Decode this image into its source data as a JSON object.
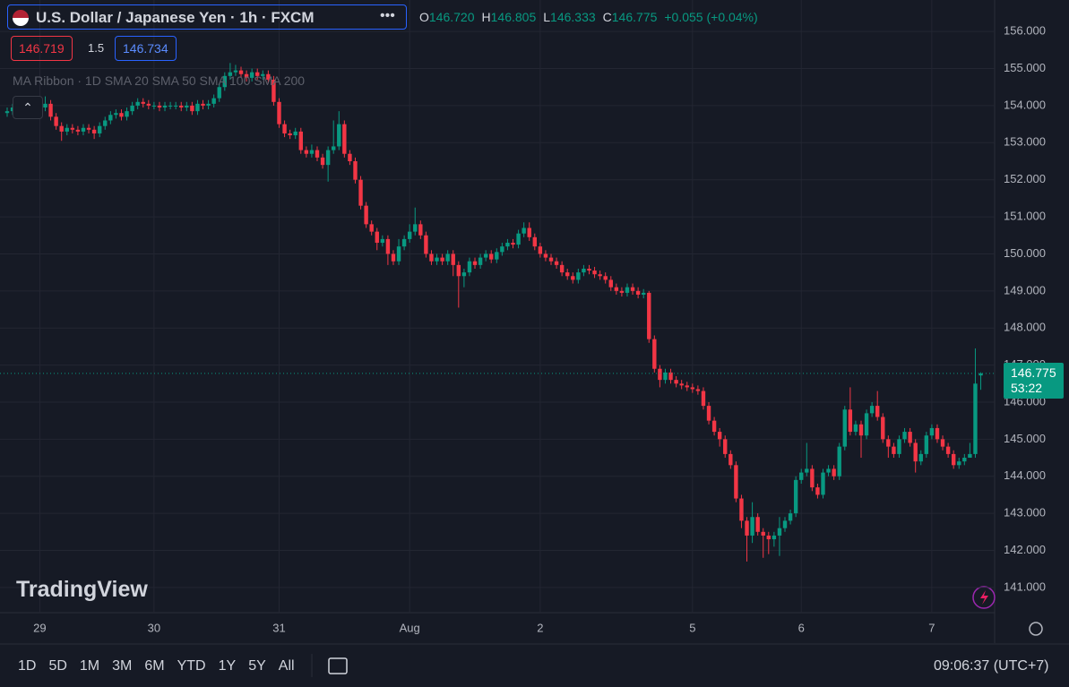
{
  "header": {
    "title": "U.S. Dollar / Japanese Yen · 1h · FXCM",
    "ohlc": [
      {
        "key": "O",
        "value": "146.720"
      },
      {
        "key": "H",
        "value": "146.805"
      },
      {
        "key": "L",
        "value": "146.333"
      },
      {
        "key": "C",
        "value": "146.775"
      }
    ],
    "change": "+0.055 (+0.04%)",
    "bid": "146.719",
    "spread": "1.5",
    "ask": "146.734",
    "indicator": "MA Ribbon · 1D SMA 20 SMA 50 SMA 100 SMA 200"
  },
  "logo": "TradingView",
  "price_label": {
    "price": "146.775",
    "countdown": "53:22"
  },
  "toolbar": {
    "timeframes": [
      "1D",
      "5D",
      "1M",
      "3M",
      "6M",
      "YTD",
      "1Y",
      "5Y",
      "All"
    ],
    "clock": "09:06:37 (UTC+7)"
  },
  "chart_data": {
    "type": "candlestick",
    "up_color": "#089981",
    "down_color": "#f23645",
    "ylim": [
      140.32,
      156.85
    ],
    "yticks": [
      {
        "value": 141,
        "label": "141.000"
      },
      {
        "value": 142,
        "label": "142.000"
      },
      {
        "value": 143,
        "label": "143.000"
      },
      {
        "value": 144,
        "label": "144.000"
      },
      {
        "value": 145,
        "label": "145.000"
      },
      {
        "value": 146,
        "label": "146.000"
      },
      {
        "value": 147,
        "label": "147.000"
      },
      {
        "value": 148,
        "label": "148.000"
      },
      {
        "value": 149,
        "label": "149.000"
      },
      {
        "value": 150,
        "label": "150.000"
      },
      {
        "value": 151,
        "label": "151.000"
      },
      {
        "value": 152,
        "label": "152.000"
      },
      {
        "value": 153,
        "label": "153.000"
      },
      {
        "value": 154,
        "label": "154.000"
      },
      {
        "value": 155,
        "label": "155.000"
      },
      {
        "value": 156,
        "label": "156.000"
      }
    ],
    "grid": true,
    "categories": [
      null,
      null,
      null,
      null,
      null,
      null,
      "29",
      null,
      null,
      null,
      null,
      null,
      null,
      null,
      null,
      null,
      null,
      null,
      null,
      null,
      null,
      null,
      null,
      null,
      null,
      null,
      null,
      "30",
      null,
      null,
      null,
      null,
      null,
      null,
      null,
      null,
      null,
      null,
      null,
      null,
      null,
      null,
      null,
      null,
      null,
      null,
      null,
      null,
      null,
      null,
      "31",
      null,
      null,
      null,
      null,
      null,
      null,
      null,
      null,
      null,
      null,
      null,
      null,
      null,
      null,
      null,
      null,
      null,
      null,
      null,
      null,
      null,
      null,
      null,
      "Aug",
      null,
      null,
      null,
      null,
      null,
      null,
      null,
      null,
      null,
      null,
      null,
      null,
      null,
      null,
      null,
      null,
      null,
      null,
      null,
      null,
      null,
      null,
      null,
      "2",
      null,
      null,
      null,
      null,
      null,
      null,
      null,
      null,
      null,
      null,
      null,
      null,
      null,
      null,
      null,
      null,
      null,
      null,
      null,
      null,
      null,
      null,
      null,
      null,
      null,
      null,
      null,
      "5",
      null,
      null,
      null,
      null,
      null,
      null,
      null,
      null,
      null,
      null,
      null,
      null,
      null,
      null,
      null,
      null,
      null,
      null,
      null,
      "6",
      null,
      null,
      null,
      null,
      null,
      null,
      null,
      null,
      null,
      null,
      null,
      null,
      null,
      null,
      null,
      null,
      null,
      null,
      null,
      null,
      null,
      null,
      null,
      "7",
      null,
      null,
      null,
      null,
      null,
      null,
      null,
      null,
      null
    ],
    "open": [
      153.8,
      153.85,
      153.95,
      153.8,
      153.9,
      154,
      153.85,
      153.95,
      154.05,
      153.7,
      153.45,
      153.3,
      153.4,
      153.35,
      153.3,
      153.4,
      153.35,
      153.25,
      153.45,
      153.6,
      153.75,
      153.8,
      153.7,
      153.85,
      154,
      154.1,
      154.05,
      154,
      154,
      153.95,
      154,
      154,
      154,
      153.95,
      154,
      153.85,
      154.05,
      154,
      154.05,
      154.2,
      154.5,
      154.8,
      154.9,
      154.95,
      154.85,
      154.75,
      154.9,
      154.8,
      154.85,
      154.7,
      154.1,
      153.5,
      153.25,
      153.2,
      153.3,
      152.8,
      152.7,
      152.8,
      152.6,
      152.4,
      152.8,
      152.9,
      153.5,
      152.7,
      152.5,
      152,
      151.3,
      150.8,
      150.6,
      150.3,
      150.4,
      150,
      149.8,
      150.2,
      150.4,
      150.6,
      150.8,
      150.5,
      150,
      149.8,
      149.9,
      149.8,
      150,
      149.7,
      149.4,
      149.5,
      149.8,
      149.7,
      149.9,
      150,
      149.85,
      150.05,
      150.2,
      150.3,
      150.25,
      150.55,
      150.7,
      150.45,
      150.2,
      150,
      149.9,
      149.8,
      149.7,
      149.5,
      149.4,
      149.3,
      149.5,
      149.6,
      149.55,
      149.45,
      149.4,
      149.3,
      149.1,
      149,
      148.95,
      149.1,
      149,
      148.9,
      148.95,
      147.7,
      146.9,
      146.6,
      146.8,
      146.6,
      146.5,
      146.45,
      146.4,
      146.35,
      146.3,
      145.9,
      145.5,
      145.2,
      145,
      144.6,
      144.3,
      143.4,
      142.8,
      142.4,
      142.9,
      142.5,
      142.4,
      142.3,
      142.4,
      142.6,
      142.8,
      143,
      143.9,
      144.1,
      144.2,
      143.7,
      143.5,
      144.1,
      144.2,
      144,
      144.8,
      145.8,
      145.2,
      145.4,
      145.1,
      145.7,
      145.9,
      145.6,
      145,
      144.8,
      144.6,
      145,
      145.2,
      144.9,
      144.4,
      144.6,
      145.1,
      145.3,
      145,
      144.8,
      144.6,
      144.3,
      144.4,
      144.5,
      144.6,
      146.72
    ],
    "high": [
      153.95,
      154.05,
      154.05,
      154,
      154.1,
      154.1,
      154.05,
      154.25,
      154.15,
      153.8,
      153.55,
      153.5,
      153.5,
      153.45,
      153.5,
      153.5,
      153.45,
      153.55,
      153.7,
      153.85,
      153.9,
      153.9,
      153.95,
      154.1,
      154.2,
      154.2,
      154.15,
      154.1,
      154.1,
      154.1,
      154.1,
      154.1,
      154.1,
      154.1,
      154.1,
      154.15,
      154.15,
      154.15,
      154.3,
      154.6,
      154.9,
      155.15,
      155.1,
      155.05,
      154.95,
      155,
      155,
      154.95,
      154.95,
      154.8,
      154.2,
      153.6,
      153.35,
      153.4,
      153.4,
      152.9,
      152.95,
      152.9,
      152.7,
      152.9,
      153.6,
      153.85,
      153.6,
      152.8,
      152.6,
      152.1,
      151.4,
      150.9,
      150.7,
      150.5,
      150.5,
      150.1,
      150.4,
      150.5,
      150.8,
      151.25,
      150.9,
      150.6,
      150.1,
      150,
      150,
      150.1,
      150.1,
      149.8,
      149.6,
      149.9,
      149.9,
      150,
      150.1,
      150.1,
      150.15,
      150.3,
      150.4,
      150.4,
      150.65,
      150.85,
      150.85,
      150.55,
      150.3,
      150.1,
      150,
      149.9,
      149.8,
      149.6,
      149.5,
      149.6,
      149.7,
      149.7,
      149.65,
      149.55,
      149.5,
      149.4,
      149.2,
      149.1,
      149.2,
      149.2,
      149.1,
      149.05,
      149,
      147.8,
      147,
      146.9,
      146.9,
      146.7,
      146.6,
      146.55,
      146.5,
      146.45,
      146.4,
      146,
      145.6,
      145.3,
      145.1,
      144.7,
      144.4,
      143.5,
      142.9,
      143.3,
      143,
      142.6,
      142.5,
      142.5,
      142.9,
      142.9,
      143.1,
      144,
      144.2,
      144.9,
      144.3,
      143.8,
      144.2,
      144.3,
      144.3,
      144.9,
      145.9,
      146.4,
      145.5,
      145.5,
      145.8,
      146,
      146.3,
      145.7,
      145.1,
      144.9,
      145.1,
      145.3,
      145.3,
      145,
      144.7,
      145.2,
      145.4,
      145.4,
      145.1,
      144.9,
      144.7,
      144.5,
      144.6,
      144.9,
      147.45,
      146.805
    ],
    "low": [
      153.7,
      153.75,
      153.7,
      153.7,
      153.8,
      153.75,
      153.75,
      153.85,
      153.6,
      153.35,
      153.05,
      153.2,
      153.25,
      153.2,
      153.2,
      153.25,
      153.1,
      153.15,
      153.35,
      153.5,
      153.65,
      153.6,
      153.6,
      153.75,
      153.9,
      153.95,
      153.9,
      153.9,
      153.85,
      153.85,
      153.9,
      153.9,
      153.85,
      153.85,
      153.75,
      153.75,
      153.9,
      153.9,
      153.95,
      154.1,
      154.4,
      154.7,
      154.8,
      154.75,
      154.65,
      154.65,
      154.7,
      154.7,
      154.6,
      154,
      153.4,
      153.15,
      153.1,
      153.1,
      152.7,
      152.6,
      152.6,
      152.5,
      152.3,
      151.95,
      152.7,
      152.8,
      152.6,
      152.4,
      151.9,
      151.2,
      150.7,
      150.5,
      150.1,
      150.2,
      149.7,
      149.7,
      149.7,
      150.1,
      150.3,
      150.5,
      150.4,
      149.9,
      149.7,
      149.7,
      149.7,
      149.7,
      149.4,
      148.55,
      149.1,
      149.4,
      149.6,
      149.6,
      149.8,
      149.75,
      149.75,
      149.95,
      150.1,
      150.15,
      150.15,
      150.45,
      150.35,
      150.1,
      149.9,
      149.8,
      149.7,
      149.6,
      149.4,
      149.3,
      149.2,
      149.2,
      149.4,
      149.45,
      149.35,
      149.3,
      149.2,
      149,
      148.9,
      148.85,
      148.85,
      148.9,
      148.8,
      148.8,
      147.6,
      146.8,
      146.4,
      146.5,
      146.5,
      146.4,
      146.35,
      146.3,
      146.25,
      146.2,
      145.8,
      145.4,
      145.1,
      144.8,
      144.5,
      144.2,
      143.3,
      142.6,
      141.7,
      142.2,
      142.4,
      141.8,
      141.9,
      142.1,
      141.85,
      142.5,
      142.7,
      142.9,
      143.8,
      144,
      143.6,
      143.4,
      143.4,
      144,
      143.9,
      143.9,
      144.7,
      145.1,
      145.1,
      144.5,
      145,
      145.6,
      145.5,
      144.9,
      144.5,
      144.5,
      144.5,
      144.9,
      144.8,
      144.1,
      144.3,
      144.5,
      145,
      144.9,
      144.7,
      144.5,
      144.2,
      144.2,
      144.3,
      144.5,
      144.5,
      146.333
    ],
    "close": [
      153.85,
      153.95,
      153.8,
      153.9,
      154,
      153.85,
      153.95,
      154.05,
      153.7,
      153.45,
      153.3,
      153.4,
      153.35,
      153.3,
      153.4,
      153.35,
      153.25,
      153.45,
      153.6,
      153.75,
      153.8,
      153.7,
      153.85,
      154,
      154.1,
      154.05,
      154,
      154,
      153.95,
      154,
      154,
      154,
      153.95,
      154,
      153.85,
      154.05,
      154,
      154.05,
      154.2,
      154.5,
      154.8,
      154.9,
      154.95,
      154.85,
      154.75,
      154.9,
      154.8,
      154.85,
      154.7,
      154.1,
      153.5,
      153.25,
      153.2,
      153.3,
      152.8,
      152.7,
      152.8,
      152.6,
      152.4,
      152.8,
      152.9,
      153.5,
      152.7,
      152.5,
      152,
      151.3,
      150.8,
      150.6,
      150.3,
      150.4,
      150,
      149.8,
      150.2,
      150.4,
      150.6,
      150.8,
      150.5,
      150,
      149.8,
      149.9,
      149.8,
      150,
      149.7,
      149.4,
      149.5,
      149.8,
      149.7,
      149.9,
      150,
      149.85,
      150.05,
      150.2,
      150.3,
      150.25,
      150.55,
      150.7,
      150.45,
      150.2,
      150,
      149.9,
      149.8,
      149.7,
      149.5,
      149.4,
      149.3,
      149.5,
      149.6,
      149.55,
      149.45,
      149.4,
      149.3,
      149.1,
      149,
      148.95,
      149.1,
      149,
      148.9,
      148.95,
      147.7,
      146.9,
      146.6,
      146.8,
      146.6,
      146.5,
      146.45,
      146.4,
      146.35,
      146.3,
      145.9,
      145.5,
      145.2,
      145,
      144.6,
      144.3,
      143.4,
      142.8,
      142.4,
      142.9,
      142.5,
      142.4,
      142.3,
      142.4,
      142.6,
      142.8,
      143,
      143.9,
      144.1,
      144.2,
      143.7,
      143.5,
      144.1,
      144.2,
      144,
      144.8,
      145.8,
      145.2,
      145.4,
      145.1,
      145.7,
      145.9,
      145.6,
      145,
      144.8,
      144.6,
      145,
      145.2,
      144.9,
      144.4,
      144.6,
      145.1,
      145.3,
      145,
      144.8,
      144.6,
      144.3,
      144.4,
      144.5,
      144.6,
      146.5,
      146.775
    ]
  }
}
